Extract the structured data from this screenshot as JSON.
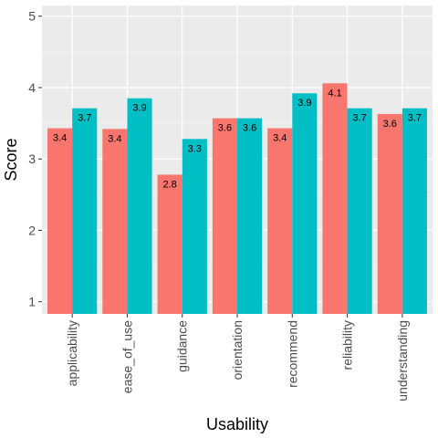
{
  "chart_data": {
    "type": "bar",
    "xlabel": "Usability",
    "ylabel": "Score",
    "ylim": [
      0.83,
      5.15
    ],
    "y_ticks": [
      1,
      2,
      3,
      4,
      5
    ],
    "grid": true,
    "legend": "none",
    "categories": [
      "applicability",
      "ease_of_use",
      "guidance",
      "orientation",
      "recommend",
      "reliability",
      "understanding"
    ],
    "series": [
      {
        "color": "#F8766D",
        "values": [
          3.43,
          3.42,
          2.78,
          3.57,
          3.43,
          4.06,
          3.63
        ],
        "labels": [
          "3.4",
          "3.4",
          "2.8",
          "3.6",
          "3.4",
          "4.1",
          "3.6"
        ]
      },
      {
        "color": "#00BFC4",
        "values": [
          3.71,
          3.85,
          3.28,
          3.57,
          3.92,
          3.71,
          3.71
        ],
        "labels": [
          "3.7",
          "3.9",
          "3.3",
          "3.6",
          "3.9",
          "3.7",
          "3.7"
        ]
      }
    ]
  },
  "colors": {
    "panel_background": "#EBEBEB",
    "grid_major": "#FFFFFF",
    "grid_minor": "#F5F5F5"
  }
}
